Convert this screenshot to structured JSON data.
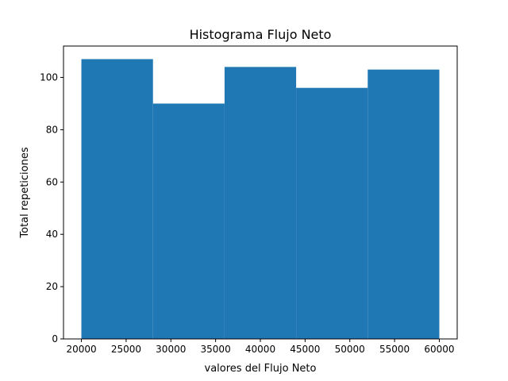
{
  "chart_data": {
    "type": "bar",
    "title": "Histograma Flujo Neto",
    "xlabel": "valores del Flujo Neto",
    "ylabel": "Total repeticiones",
    "bins": [
      {
        "x0": 20000,
        "x1": 28000,
        "count": 107
      },
      {
        "x0": 28000,
        "x1": 36000,
        "count": 90
      },
      {
        "x0": 36000,
        "x1": 44000,
        "count": 104
      },
      {
        "x0": 44000,
        "x1": 52000,
        "count": 96
      },
      {
        "x0": 52000,
        "x1": 60000,
        "count": 103
      }
    ],
    "xlim": [
      18000,
      62000
    ],
    "ylim": [
      0,
      112
    ],
    "xticks": [
      20000,
      25000,
      30000,
      35000,
      40000,
      45000,
      50000,
      55000,
      60000
    ],
    "yticks": [
      0,
      20,
      40,
      60,
      80,
      100
    ],
    "bar_color": "#1f77b4",
    "grid": false,
    "legend": "none"
  }
}
